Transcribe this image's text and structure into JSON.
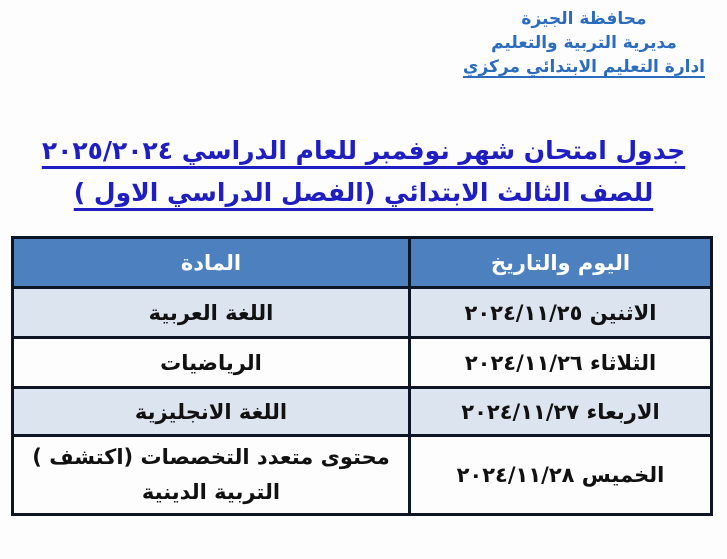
{
  "colors": {
    "page_bg": "#fdfdfd",
    "letterhead_text": "#2b6cbf",
    "title_text": "#1e1ec2",
    "table_header_bg": "#4d80bf",
    "table_header_text": "#ffffff",
    "row_shaded_bg": "#dce4ef",
    "row_plain_bg": "#fdfdfd",
    "table_border": "#0d1526",
    "cell_text": "#111111"
  },
  "letterhead": {
    "line1": "محافظة الجيزة",
    "line2": "مديرية التربية والتعليم",
    "line3": "ادارة التعليم الابتدائي مركزي"
  },
  "title": {
    "line1": "جدول امتحان شهر نوفمبر للعام الدراسي ٢٠٢٥/٢٠٢٤",
    "line2": "للصف الثالث الابتدائي (الفصل الدراسي الاول )"
  },
  "table": {
    "columns": [
      {
        "key": "day_date",
        "label": "اليوم والتاريخ"
      },
      {
        "key": "subject",
        "label": "المادة"
      }
    ],
    "rows": [
      {
        "day_date": "الاثنين ٢٠٢٤/١١/٢٥",
        "subject": "اللغة العربية",
        "shaded": true
      },
      {
        "day_date": "الثلاثاء ٢٠٢٤/١١/٢٦",
        "subject": "الرياضيات",
        "shaded": false
      },
      {
        "day_date": "الاربعاء ٢٠٢٤/١١/٢٧",
        "subject": "اللغة الانجليزية",
        "shaded": true
      },
      {
        "day_date": "الخميس ٢٠٢٤/١١/٢٨",
        "subject_line1": "محتوى متعدد التخصصات (اكتشف )",
        "subject_line2": "التربية الدينية",
        "shaded": false
      }
    ]
  }
}
